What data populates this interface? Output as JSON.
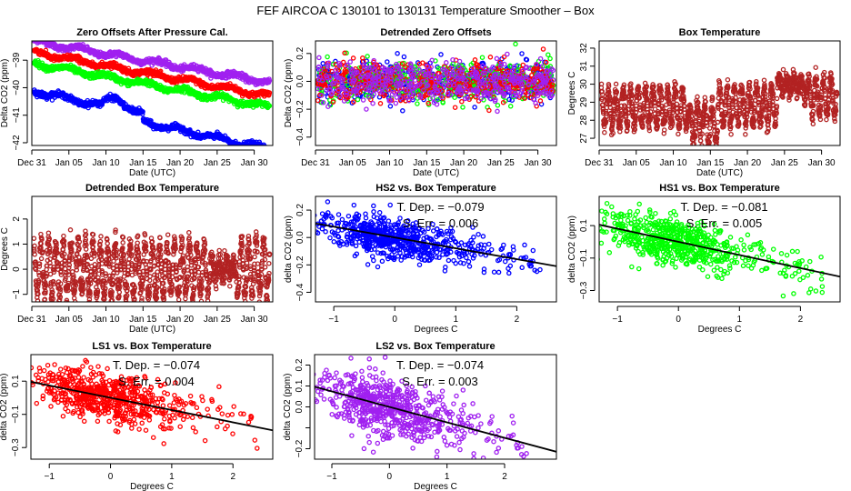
{
  "title": "FEF   AIRCOA C   130101 to 130131   Temperature Smoother – Box",
  "chart_data": [
    {
      "id": "p1",
      "type": "scatter",
      "title": "Zero Offsets After Pressure Cal.",
      "xlabel": "Date (UTC)",
      "ylabel": "Delta CO2 (ppm)",
      "xticks": [
        "Dec 31",
        "Jan 05",
        "Jan 10",
        "Jan 15",
        "Jan 20",
        "Jan 25",
        "Jan 30"
      ],
      "xlim": [
        0,
        32.5
      ],
      "ylim": [
        -42.1,
        -38.3
      ],
      "yticks": [
        -42,
        -41,
        -40,
        -39
      ],
      "series": [
        {
          "name": "LS2",
          "color": "#a020f0",
          "start": -38.3,
          "end": -39.8
        },
        {
          "name": "LS1",
          "color": "#ff0000",
          "start": -38.7,
          "end": -40.3
        },
        {
          "name": "HS1",
          "color": "#00ff00",
          "start": -39.1,
          "end": -40.7
        },
        {
          "name": "HS2",
          "color": "#0000ff",
          "start": -40.1,
          "end": -42.0
        }
      ]
    },
    {
      "id": "p2",
      "type": "scatter",
      "title": "Detrended Zero Offsets",
      "xlabel": "Date (UTC)",
      "ylabel": "Delta CO2 (ppm)",
      "xticks": [
        "Dec 31",
        "Jan 05",
        "Jan 10",
        "Jan 15",
        "Jan 20",
        "Jan 25",
        "Jan 30"
      ],
      "xlim": [
        0,
        32.5
      ],
      "ylim": [
        -0.46,
        0.29
      ],
      "yticks": [
        -0.4,
        -0.2,
        0.0,
        0.2
      ],
      "series": [
        {
          "name": "HS2",
          "color": "#0000ff"
        },
        {
          "name": "HS1",
          "color": "#00ff00"
        },
        {
          "name": "LS1",
          "color": "#ff0000"
        },
        {
          "name": "LS2",
          "color": "#a020f0"
        }
      ]
    },
    {
      "id": "p3",
      "type": "scatter",
      "title": "Box Temperature",
      "xlabel": "Date (UTC)",
      "ylabel": "Degrees C",
      "xticks": [
        "Dec 31",
        "Jan 05",
        "Jan 10",
        "Jan 15",
        "Jan 20",
        "Jan 25",
        "Jan 30"
      ],
      "xlim": [
        0,
        32.5
      ],
      "ylim": [
        26.6,
        32.4
      ],
      "yticks": [
        27,
        28,
        29,
        30,
        31,
        32
      ],
      "series": [
        {
          "name": "Box T",
          "color": "#b22222"
        }
      ]
    },
    {
      "id": "p4",
      "type": "scatter",
      "title": "Detrended Box Temperature",
      "xlabel": "Date (UTC)",
      "ylabel": "Degrees C",
      "xticks": [
        "Dec 31",
        "Jan 05",
        "Jan 10",
        "Jan 15",
        "Jan 20",
        "Jan 25",
        "Jan 30"
      ],
      "xlim": [
        0,
        32.5
      ],
      "ylim": [
        -1.3,
        2.9
      ],
      "yticks": [
        -1,
        0,
        1,
        2
      ],
      "series": [
        {
          "name": "Detrended Box T",
          "color": "#b22222"
        }
      ]
    },
    {
      "id": "p5",
      "type": "scatter",
      "title": "HS2 vs. Box Temperature",
      "xlabel": "Degrees C",
      "ylabel": "delta CO2 (ppm)",
      "xlim": [
        -1.3,
        2.65
      ],
      "ylim": [
        -0.47,
        0.3
      ],
      "xticks": [
        -1,
        0,
        1,
        2
      ],
      "yticks": [
        -0.4,
        -0.2,
        0.0,
        0.2
      ],
      "color": "#0000ff",
      "slope": -0.079,
      "annotation": [
        "T. Dep. =  −0.079",
        "S. Err. =  0.006"
      ]
    },
    {
      "id": "p6",
      "type": "scatter",
      "title": "HS1 vs. Box Temperature",
      "xlabel": "Degrees C",
      "ylabel": "delta CO2 (ppm)",
      "xlim": [
        -1.3,
        2.65
      ],
      "ylim": [
        -0.37,
        0.28
      ],
      "xticks": [
        -1,
        0,
        1,
        2
      ],
      "yticks": [
        -0.3,
        -0.1,
        0.1
      ],
      "color": "#00ff00",
      "slope": -0.081,
      "annotation": [
        "T. Dep. =  −0.081",
        "S. Err. =  0.005"
      ]
    },
    {
      "id": "p7",
      "type": "scatter",
      "title": "LS1 vs. Box Temperature",
      "xlabel": "Degrees C",
      "ylabel": "delta CO2 (ppm)",
      "xlim": [
        -1.3,
        2.65
      ],
      "ylim": [
        -0.37,
        0.26
      ],
      "xticks": [
        -1,
        0,
        1,
        2
      ],
      "yticks": [
        -0.3,
        -0.1,
        0.1
      ],
      "color": "#ff0000",
      "slope": -0.074,
      "annotation": [
        "T. Dep. =  −0.074",
        "S. Err. =  0.004"
      ]
    },
    {
      "id": "p8",
      "type": "scatter",
      "title": "LS2 vs. Box Temperature",
      "xlabel": "Degrees C",
      "ylabel": "delta CO2 (ppm)",
      "xlim": [
        -1.3,
        2.9
      ],
      "ylim": [
        -0.25,
        0.25
      ],
      "xticks": [
        -1,
        0,
        1,
        2
      ],
      "yticks": [
        -0.2,
        -0.1,
        0.0,
        0.1,
        0.2
      ],
      "ytick_labels": [
        "−0.2",
        "",
        "0.0",
        "0.1",
        "0.2"
      ],
      "color": "#a020f0",
      "slope": -0.074,
      "annotation": [
        "T. Dep. =  −0.074",
        "S. Err. =  0.003"
      ]
    }
  ]
}
